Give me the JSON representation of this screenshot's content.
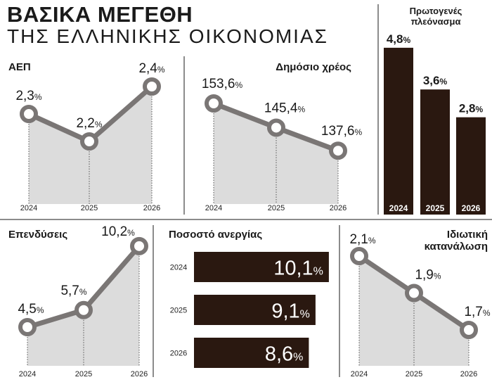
{
  "header": {
    "title": "ΒΑΣΙΚΑ ΜΕΓΕΘΗ",
    "subtitle": "ΤΗΣ ΕΛΛΗΝΙΚΗΣ ΟΙΚΟΝΟΜΙΑΣ"
  },
  "colors": {
    "bar": "#2a1810",
    "line": "#7a7675",
    "area": "#dcdcdc"
  },
  "chart_data": [
    {
      "id": "gdp",
      "type": "line",
      "title": "ΑΕΠ",
      "x": [
        "2024",
        "2025",
        "2026"
      ],
      "values": [
        2.3,
        2.2,
        2.4
      ],
      "labels": [
        "2,3",
        "2,2",
        "2,4"
      ],
      "unit": "%"
    },
    {
      "id": "debt",
      "type": "line",
      "title": "Δημόσιο χρέος",
      "x": [
        "2024",
        "2025",
        "2026"
      ],
      "values": [
        153.6,
        145.4,
        137.6
      ],
      "labels": [
        "153,6",
        "145,4",
        "137,6"
      ],
      "unit": "%"
    },
    {
      "id": "primary",
      "type": "bar",
      "title": "Πρωτογενές πλεόνασμα",
      "title_lines": [
        "Πρωτογενές",
        "πλεόνασμα"
      ],
      "categories": [
        "2024",
        "2025",
        "2026"
      ],
      "values": [
        4.8,
        3.6,
        2.8
      ],
      "labels": [
        "4,8",
        "3,6",
        "2,8"
      ],
      "unit": "%"
    },
    {
      "id": "invest",
      "type": "line",
      "title": "Επενδύσεις",
      "x": [
        "2024",
        "2025",
        "2026"
      ],
      "values": [
        4.5,
        5.7,
        10.2
      ],
      "labels": [
        "4,5",
        "5,7",
        "10,2"
      ],
      "unit": "%"
    },
    {
      "id": "unemp",
      "type": "bar",
      "orientation": "horizontal",
      "title": "Ποσοστό ανεργίας",
      "categories": [
        "2024",
        "2025",
        "2026"
      ],
      "values": [
        10.1,
        9.1,
        8.6
      ],
      "labels": [
        "10,1",
        "9,1",
        "8,6"
      ],
      "unit": "%"
    },
    {
      "id": "consumption",
      "type": "line",
      "title": "Ιδιωτική κατανάλωση",
      "title_lines": [
        "Ιδιωτική",
        "κατανάλωση"
      ],
      "x": [
        "2024",
        "2025",
        "2026"
      ],
      "values": [
        2.1,
        1.9,
        1.7
      ],
      "labels": [
        "2,1",
        "1,9",
        "1,7"
      ],
      "unit": "%"
    }
  ]
}
